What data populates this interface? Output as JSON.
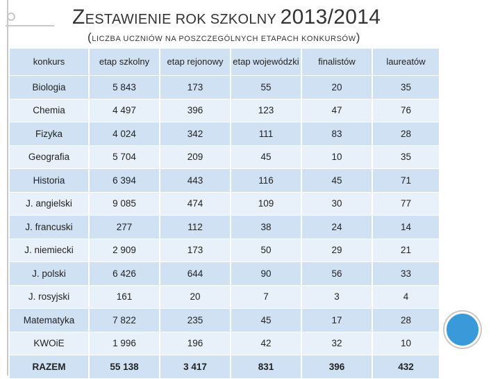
{
  "title": {
    "first_letter": "Z",
    "rest": "ESTAWIENIE ROK SZKOLNY ",
    "year": "2013/2014"
  },
  "subtitle": {
    "open": "(",
    "text": "LICZBA UCZNIÓW NA POSZCZEGÓLNYCH ETAPACH KONKURSÓW",
    "close": ")"
  },
  "table": {
    "headers": [
      "konkurs",
      "etap szkolny",
      "etap rejonowy",
      "etap wojewódzki",
      "finalistów",
      "laureatów"
    ],
    "rows": [
      [
        "Biologia",
        "5 843",
        "173",
        "55",
        "20",
        "35"
      ],
      [
        "Chemia",
        "4 497",
        "396",
        "123",
        "47",
        "76"
      ],
      [
        "Fizyka",
        "4 024",
        "342",
        "111",
        "83",
        "28"
      ],
      [
        "Geografia",
        "5 704",
        "209",
        "45",
        "10",
        "35"
      ],
      [
        "Historia",
        "6 394",
        "443",
        "116",
        "45",
        "71"
      ],
      [
        "J. angielski",
        "9 085",
        "474",
        "109",
        "30",
        "77"
      ],
      [
        "J. francuski",
        "277",
        "112",
        "38",
        "24",
        "14"
      ],
      [
        "J. niemiecki",
        "2 909",
        "173",
        "50",
        "29",
        "21"
      ],
      [
        "J. polski",
        "6 426",
        "644",
        "90",
        "56",
        "33"
      ],
      [
        "J. rosyjski",
        "161",
        "20",
        "7",
        "3",
        "4"
      ],
      [
        "Matematyka",
        "7 822",
        "235",
        "45",
        "17",
        "28"
      ],
      [
        "KWOiE",
        "1 996",
        "196",
        "42",
        "32",
        "10"
      ]
    ],
    "total": [
      "RAZEM",
      "55 138",
      "3 417",
      "831",
      "396",
      "432"
    ]
  },
  "colors": {
    "row_dark": "#cfe1f3",
    "row_light": "#e8f0f9",
    "accent_circle": "#3a9ad9",
    "rule": "#c8c8c8"
  }
}
